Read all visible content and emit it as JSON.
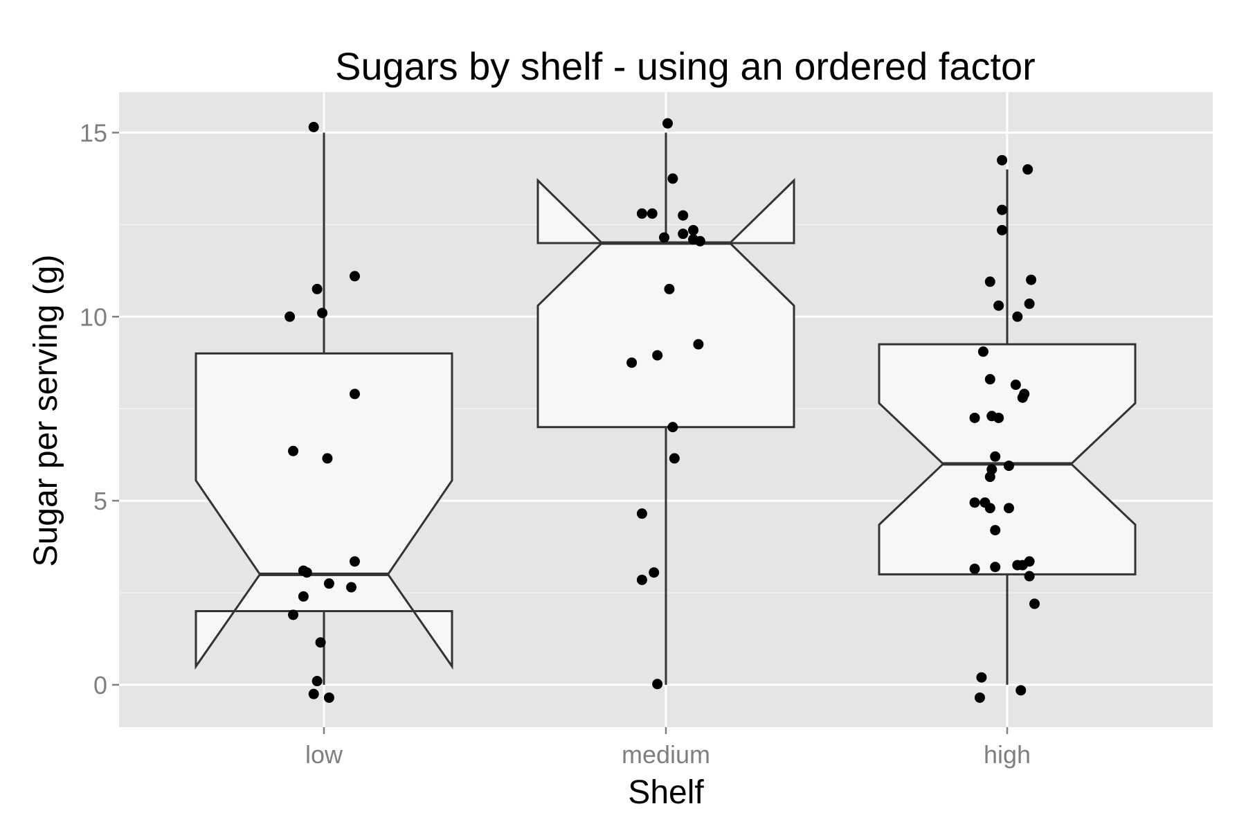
{
  "chart_data": {
    "type": "boxplot",
    "title": "Sugars by shelf - using an ordered factor",
    "xlabel": "Shelf",
    "ylabel": "Sugar per serving (g)",
    "categories": [
      "low",
      "medium",
      "high"
    ],
    "yticks": [
      0,
      5,
      10,
      15
    ],
    "ylim": [
      -1.15,
      16.1
    ],
    "grid": true,
    "notched": true,
    "colors": {
      "panel": "#e5e5e5",
      "grid_major": "#ffffff",
      "grid_minor": "#f2f2f2",
      "box_fill": "#f7f7f7",
      "box_stroke": "#333333",
      "point": "#000000",
      "tick": "#7f7f7f"
    },
    "boxes": [
      {
        "category": "low",
        "lower_whisker": 0,
        "q1": 2,
        "median": 3,
        "q3": 9,
        "upper_whisker": 15,
        "notch_lower": 0.5,
        "notch_upper": 5.55
      },
      {
        "category": "medium",
        "lower_whisker": 0,
        "q1": 7,
        "median": 12,
        "q3": 12,
        "upper_whisker": 15,
        "notch_lower": 10.3,
        "notch_upper": 13.7
      },
      {
        "category": "high",
        "lower_whisker": 0,
        "q1": 3,
        "median": 6,
        "q3": 9.25,
        "upper_whisker": 14,
        "notch_lower": 4.35,
        "notch_upper": 7.65
      }
    ],
    "points": [
      {
        "category": "low",
        "jitter": -0.03,
        "y": 15.15
      },
      {
        "category": "low",
        "jitter": -0.02,
        "y": 10.75
      },
      {
        "category": "low",
        "jitter": 0.09,
        "y": 11.1
      },
      {
        "category": "low",
        "jitter": -0.1,
        "y": 10.0
      },
      {
        "category": "low",
        "jitter": -0.005,
        "y": 10.1
      },
      {
        "category": "low",
        "jitter": 0.09,
        "y": 7.9
      },
      {
        "category": "low",
        "jitter": -0.09,
        "y": 6.35
      },
      {
        "category": "low",
        "jitter": 0.01,
        "y": 6.15
      },
      {
        "category": "low",
        "jitter": 0.09,
        "y": 3.35
      },
      {
        "category": "low",
        "jitter": -0.06,
        "y": 3.1
      },
      {
        "category": "low",
        "jitter": -0.05,
        "y": 3.05
      },
      {
        "category": "low",
        "jitter": 0.015,
        "y": 2.75
      },
      {
        "category": "low",
        "jitter": 0.08,
        "y": 2.65
      },
      {
        "category": "low",
        "jitter": -0.06,
        "y": 2.4
      },
      {
        "category": "low",
        "jitter": -0.09,
        "y": 1.9
      },
      {
        "category": "low",
        "jitter": -0.01,
        "y": 1.15
      },
      {
        "category": "low",
        "jitter": -0.02,
        "y": 0.1
      },
      {
        "category": "low",
        "jitter": -0.03,
        "y": -0.25
      },
      {
        "category": "low",
        "jitter": 0.015,
        "y": -0.35
      },
      {
        "category": "medium",
        "jitter": 0.005,
        "y": 15.25
      },
      {
        "category": "medium",
        "jitter": 0.02,
        "y": 13.75
      },
      {
        "category": "medium",
        "jitter": -0.07,
        "y": 12.8
      },
      {
        "category": "medium",
        "jitter": -0.04,
        "y": 12.8
      },
      {
        "category": "medium",
        "jitter": 0.05,
        "y": 12.75
      },
      {
        "category": "medium",
        "jitter": 0.08,
        "y": 12.35
      },
      {
        "category": "medium",
        "jitter": 0.05,
        "y": 12.25
      },
      {
        "category": "medium",
        "jitter": -0.005,
        "y": 12.15
      },
      {
        "category": "medium",
        "jitter": 0.08,
        "y": 12.1
      },
      {
        "category": "medium",
        "jitter": 0.1,
        "y": 12.05
      },
      {
        "category": "medium",
        "jitter": 0.01,
        "y": 10.75
      },
      {
        "category": "medium",
        "jitter": 0.095,
        "y": 9.25
      },
      {
        "category": "medium",
        "jitter": -0.025,
        "y": 8.95
      },
      {
        "category": "medium",
        "jitter": -0.1,
        "y": 8.75
      },
      {
        "category": "medium",
        "jitter": 0.02,
        "y": 7.0
      },
      {
        "category": "medium",
        "jitter": 0.025,
        "y": 6.15
      },
      {
        "category": "medium",
        "jitter": -0.07,
        "y": 4.65
      },
      {
        "category": "medium",
        "jitter": -0.035,
        "y": 3.05
      },
      {
        "category": "medium",
        "jitter": -0.07,
        "y": 2.85
      },
      {
        "category": "medium",
        "jitter": -0.025,
        "y": 0.02
      },
      {
        "category": "high",
        "jitter": -0.015,
        "y": 14.25
      },
      {
        "category": "high",
        "jitter": 0.06,
        "y": 14.0
      },
      {
        "category": "high",
        "jitter": -0.015,
        "y": 12.9
      },
      {
        "category": "high",
        "jitter": -0.015,
        "y": 12.35
      },
      {
        "category": "high",
        "jitter": 0.07,
        "y": 11.0
      },
      {
        "category": "high",
        "jitter": -0.05,
        "y": 10.95
      },
      {
        "category": "high",
        "jitter": 0.065,
        "y": 10.35
      },
      {
        "category": "high",
        "jitter": -0.025,
        "y": 10.3
      },
      {
        "category": "high",
        "jitter": 0.03,
        "y": 10.0
      },
      {
        "category": "high",
        "jitter": -0.07,
        "y": 9.05
      },
      {
        "category": "high",
        "jitter": -0.05,
        "y": 8.3
      },
      {
        "category": "high",
        "jitter": 0.025,
        "y": 8.15
      },
      {
        "category": "high",
        "jitter": 0.05,
        "y": 7.9
      },
      {
        "category": "high",
        "jitter": 0.045,
        "y": 7.8
      },
      {
        "category": "high",
        "jitter": -0.045,
        "y": 7.3
      },
      {
        "category": "high",
        "jitter": -0.025,
        "y": 7.25
      },
      {
        "category": "high",
        "jitter": -0.095,
        "y": 7.25
      },
      {
        "category": "high",
        "jitter": -0.035,
        "y": 6.2
      },
      {
        "category": "high",
        "jitter": 0.005,
        "y": 5.95
      },
      {
        "category": "high",
        "jitter": -0.045,
        "y": 5.85
      },
      {
        "category": "high",
        "jitter": -0.05,
        "y": 5.65
      },
      {
        "category": "high",
        "jitter": -0.095,
        "y": 4.95
      },
      {
        "category": "high",
        "jitter": -0.065,
        "y": 4.95
      },
      {
        "category": "high",
        "jitter": -0.05,
        "y": 4.8
      },
      {
        "category": "high",
        "jitter": 0.005,
        "y": 4.8
      },
      {
        "category": "high",
        "jitter": -0.035,
        "y": 4.2
      },
      {
        "category": "high",
        "jitter": 0.065,
        "y": 3.35
      },
      {
        "category": "high",
        "jitter": 0.03,
        "y": 3.25
      },
      {
        "category": "high",
        "jitter": 0.045,
        "y": 3.25
      },
      {
        "category": "high",
        "jitter": -0.035,
        "y": 3.2
      },
      {
        "category": "high",
        "jitter": -0.095,
        "y": 3.15
      },
      {
        "category": "high",
        "jitter": 0.065,
        "y": 2.95
      },
      {
        "category": "high",
        "jitter": 0.08,
        "y": 2.2
      },
      {
        "category": "high",
        "jitter": -0.075,
        "y": 0.2
      },
      {
        "category": "high",
        "jitter": 0.04,
        "y": -0.15
      },
      {
        "category": "high",
        "jitter": -0.08,
        "y": -0.35
      }
    ]
  }
}
